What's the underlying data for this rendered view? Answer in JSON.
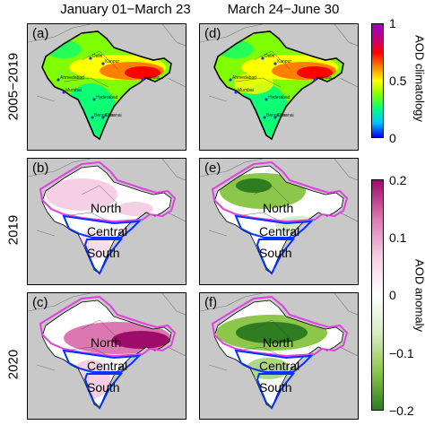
{
  "columns": [
    "January 01−March 23",
    "March 24−June 30"
  ],
  "rows": [
    "2005−2019",
    "2019",
    "2020"
  ],
  "panels": [
    "(a)",
    "(d)",
    "(b)",
    "(e)",
    "(c)",
    "(f)"
  ],
  "cities": [
    "Delhi",
    "Kanpur",
    "Kolkata",
    "Ahmedabad",
    "Mumbai",
    "Hyderabad",
    "Bengaluru",
    "Chennai"
  ],
  "regions": [
    "North",
    "Central",
    "South"
  ],
  "colorbar_clim": {
    "title": "AOD climatology",
    "ticks": [
      "1",
      "0.5",
      "0"
    ],
    "range": [
      0,
      1
    ],
    "colors": [
      "#0000ff",
      "#00c0ff",
      "#00ff80",
      "#80ff00",
      "#ffff00",
      "#ff8000",
      "#ff0000",
      "#c00080",
      "#a000c0"
    ]
  },
  "colorbar_anom": {
    "title": "AOD anomaly",
    "ticks": [
      "0.2",
      "0.1",
      "0",
      "−0.1",
      "−0.2"
    ],
    "range": [
      -0.2,
      0.2
    ],
    "colors": [
      "#2e7d20",
      "#8cc64a",
      "#d7ecc0",
      "#ffffff",
      "#f5cfe3",
      "#dd77b2",
      "#9e0b6a"
    ]
  },
  "colors": {
    "region_north": "#e040e0",
    "region_central_south": "#0033ff",
    "map_outline": "#000000",
    "ocean": "#c8c8c8"
  }
}
